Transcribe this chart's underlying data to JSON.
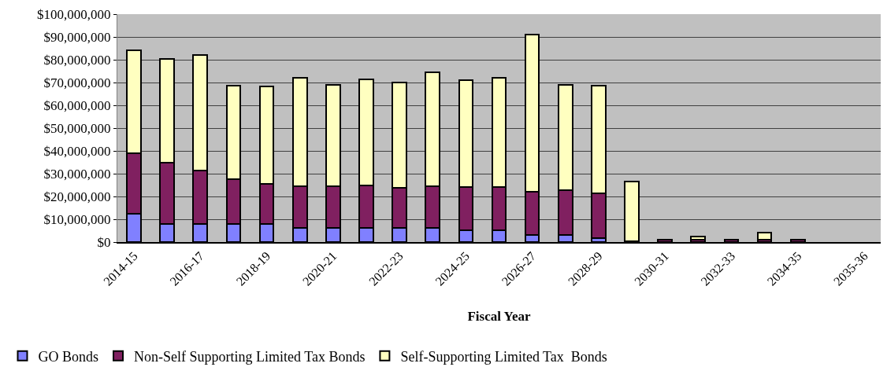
{
  "chart_data": {
    "type": "bar",
    "stacked": true,
    "xlabel": "Fiscal Year",
    "categories": [
      "2014-15",
      null,
      "2016-17",
      null,
      "2018-19",
      null,
      "2020-21",
      null,
      "2022-23",
      null,
      "2024-25",
      null,
      "2026-27",
      null,
      "2028-29",
      null,
      "2030-31",
      null,
      "2032-33",
      null,
      "2034-35",
      null,
      "2035-36"
    ],
    "series": [
      {
        "name": "GO Bonds",
        "color": "#8080ff",
        "values": [
          12300000,
          7800000,
          7800000,
          7800000,
          7800000,
          6200000,
          6200000,
          6200000,
          6200000,
          6200000,
          5200000,
          5200000,
          3100000,
          3100000,
          1700000,
          0,
          0,
          0,
          0,
          0,
          0,
          null,
          null
        ]
      },
      {
        "name": "Non-Self Supporting Limited Tax Bonds",
        "color": "#802060",
        "values": [
          26500000,
          26900000,
          23700000,
          19700000,
          17700000,
          18200000,
          18200000,
          18800000,
          17700000,
          18300000,
          19000000,
          19000000,
          19000000,
          19700000,
          19600000,
          500000,
          1000000,
          1000000,
          1000000,
          1000000,
          900000,
          null,
          null
        ]
      },
      {
        "name": "Self-Supporting Limited Tax  Bonds",
        "color": "#ffffc0",
        "values": [
          45300000,
          45500000,
          50700000,
          41200000,
          42900000,
          47500000,
          44700000,
          46400000,
          46200000,
          50000000,
          46800000,
          48000000,
          68900000,
          46100000,
          47400000,
          26000000,
          0,
          1300000,
          0,
          3000000,
          0,
          null,
          null
        ]
      }
    ],
    "ylim": [
      0,
      100000000
    ],
    "yticks": [
      {
        "value": 0,
        "label": "$0"
      },
      {
        "value": 10000000,
        "label": "$10,000,000"
      },
      {
        "value": 20000000,
        "label": "$20,000,000"
      },
      {
        "value": 30000000,
        "label": "$30,000,000"
      },
      {
        "value": 40000000,
        "label": "$40,000,000"
      },
      {
        "value": 50000000,
        "label": "$50,000,000"
      },
      {
        "value": 60000000,
        "label": "$60,000,000"
      },
      {
        "value": 70000000,
        "label": "$70,000,000"
      },
      {
        "value": 80000000,
        "label": "$80,000,000"
      },
      {
        "value": 90000000,
        "label": "$90,000,000"
      },
      {
        "value": 100000000,
        "label": "$100,000,000"
      }
    ],
    "grid": "y",
    "legend": "bottom"
  }
}
